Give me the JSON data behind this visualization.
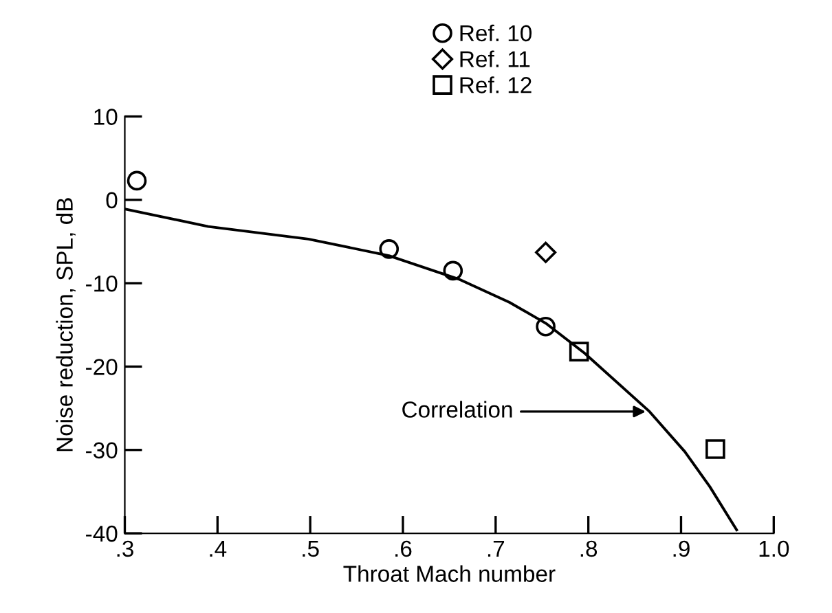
{
  "chart_data": {
    "type": "scatter",
    "xlabel": "Throat Mach number",
    "ylabel": "Noise reduction, SPL, dB",
    "xlim": [
      0.3,
      1.0
    ],
    "ylim": [
      -40,
      10
    ],
    "xticks": [
      {
        "value": 0.3,
        "label": ".3"
      },
      {
        "value": 0.4,
        "label": ".4"
      },
      {
        "value": 0.5,
        "label": ".5"
      },
      {
        "value": 0.6,
        "label": ".6"
      },
      {
        "value": 0.7,
        "label": ".7"
      },
      {
        "value": 0.8,
        "label": ".8"
      },
      {
        "value": 0.9,
        "label": ".9"
      },
      {
        "value": 1.0,
        "label": "1.0"
      }
    ],
    "yticks": [
      -40,
      -30,
      -20,
      -10,
      0,
      10
    ],
    "grid": false,
    "legend": "top",
    "series": [
      {
        "name": "Ref. 10",
        "marker": "circle",
        "color": "#000000",
        "x": [
          0.313,
          0.585,
          0.654,
          0.754
        ],
        "values": [
          2.3,
          -5.9,
          -8.5,
          -15.2
        ]
      },
      {
        "name": "Ref. 11",
        "marker": "diamond",
        "color": "#000000",
        "x": [
          0.754
        ],
        "values": [
          -6.3
        ]
      },
      {
        "name": "Ref. 12",
        "marker": "square",
        "color": "#000000",
        "x": [
          0.79,
          0.937
        ],
        "values": [
          -18.2,
          -29.9
        ]
      },
      {
        "type": "line",
        "marker": "none",
        "line_style": "solid",
        "color": "#000000",
        "x": [
          0.3,
          0.39,
          0.498,
          0.585,
          0.66,
          0.715,
          0.754,
          0.796,
          0.866,
          0.904,
          0.931,
          0.96
        ],
        "values": [
          -1.1,
          -3.2,
          -4.7,
          -6.7,
          -9.5,
          -12.3,
          -14.8,
          -18.4,
          -25.4,
          -30.2,
          -34.4,
          -39.6
        ]
      }
    ],
    "annotations": [
      {
        "text": "Correlation",
        "x": 0.866,
        "y": -25.4
      }
    ]
  }
}
